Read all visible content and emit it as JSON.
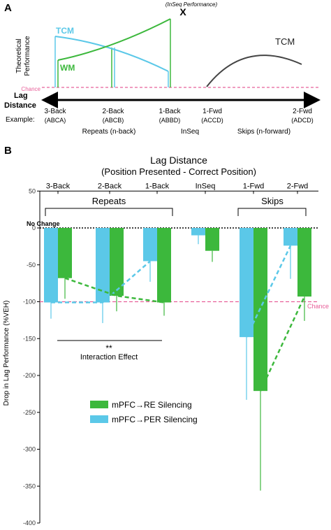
{
  "panelA": {
    "label": "A",
    "ylabel_line1": "Theoretical",
    "ylabel_line2": "Performance",
    "tcm_left": "TCM",
    "wm": "WM",
    "tcm_right": "TCM",
    "inseq_marker": "X",
    "inseq_note": "(InSeq Performance)",
    "chance": "Chance",
    "lag_line1": "Lag",
    "lag_line2": "Distance",
    "example_label": "Example:",
    "categories": [
      {
        "name": "3-Back",
        "example": "(ABCA)"
      },
      {
        "name": "2-Back",
        "example": "(ABCB)"
      },
      {
        "name": "1-Back",
        "example": "(ABBD)"
      },
      {
        "name": "1-Fwd",
        "example": "(ACCD)"
      },
      {
        "name": "2-Fwd",
        "example": "(ADCD)"
      }
    ],
    "group_labels": [
      "Repeats (n-back)",
      "InSeq",
      "Skips (n-forward)"
    ],
    "colors": {
      "tcm": "#5bc8e8",
      "wm": "#3cb83c",
      "tcm_right": "#444444",
      "chance": "#e8609a"
    }
  },
  "panelB": {
    "label": "B",
    "title_line1": "Lag Distance",
    "title_line2": "(Position Presented - Correct Position)",
    "group_repeats": "Repeats",
    "group_skips": "Skips",
    "no_change": "No Change",
    "chance": "Chance",
    "significance": "**",
    "interaction": "Interaction Effect",
    "legend": [
      "mPFC→RE Silencing",
      "mPFC→PER Silencing"
    ]
  },
  "chart_data": {
    "type": "bar",
    "title": "Lag Distance",
    "subtitle": "(Position Presented - Correct Position)",
    "ylabel": "Drop in Lag Performance (%VEH)",
    "xlabel": "",
    "categories": [
      "3-Back",
      "2-Back",
      "1-Back",
      "InSeq",
      "1-Fwd",
      "2-Fwd"
    ],
    "ylim": [
      -400,
      50
    ],
    "yticks": [
      50,
      0,
      -50,
      -100,
      -150,
      -200,
      -250,
      -300,
      -350,
      -400
    ],
    "series": [
      {
        "name": "mPFC→PER Silencing",
        "color": "#5bc8e8",
        "values": [
          -101,
          -101,
          -45,
          -10,
          -148,
          -24
        ],
        "errors": [
          22,
          28,
          28,
          12,
          85,
          45
        ]
      },
      {
        "name": "mPFC→RE Silencing",
        "color": "#3cb83c",
        "values": [
          -68,
          -92,
          -101,
          -31,
          -221,
          -93
        ],
        "errors": [
          28,
          21,
          18,
          15,
          135,
          33
        ]
      }
    ],
    "reference_lines": [
      {
        "label": "No Change",
        "y": 0
      },
      {
        "label": "Chance",
        "y": -100
      }
    ]
  }
}
